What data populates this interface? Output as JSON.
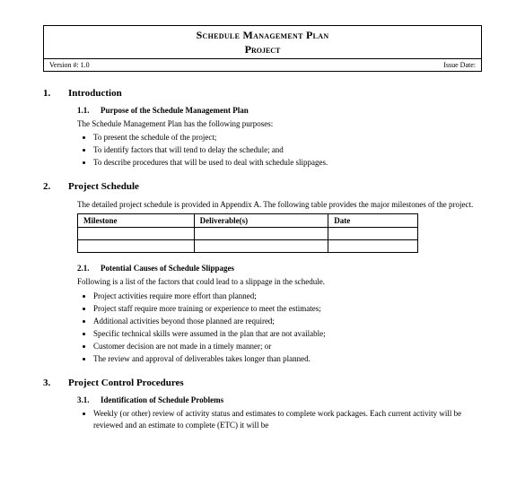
{
  "title": {
    "main": "Schedule Management Plan",
    "sub": "Project",
    "version_label": "Version #:  1.0",
    "issue_label": "Issue Date:"
  },
  "sections": {
    "s1": {
      "num": "1.",
      "title": "Introduction"
    },
    "s1_1": {
      "num": "1.1.",
      "title": "Purpose of the Schedule Management Plan"
    },
    "s1_1_intro": "The Schedule Management Plan has the following purposes:",
    "s1_1_bullets": [
      "To present the schedule of the project;",
      "To identify factors that will tend to delay the schedule; and",
      "To describe procedures that will be used to deal with schedule slippages."
    ],
    "s2": {
      "num": "2.",
      "title": "Project Schedule"
    },
    "s2_intro": "The detailed project schedule is provided in Appendix A.  The following table provides the major milestones of the project.",
    "s2_table": {
      "headers": [
        "Milestone",
        "Deliverable(s)",
        "Date"
      ],
      "col_widths": [
        "130px",
        "150px",
        "100px"
      ]
    },
    "s2_1": {
      "num": "2.1.",
      "title": "Potential Causes of Schedule Slippages"
    },
    "s2_1_intro": "Following is a list of the factors that could lead to a slippage in the schedule.",
    "s2_1_bullets": [
      "Project activities require more effort than planned;",
      "Project staff require more training or experience to meet the estimates;",
      "Additional activities beyond those planned are required;",
      "Specific technical skills were assumed in the plan that are not available;",
      "Customer decision are not made in a timely manner; or",
      "The review and approval of deliverables takes longer than planned."
    ],
    "s3": {
      "num": "3.",
      "title": "Project Control Procedures"
    },
    "s3_1": {
      "num": "3.1.",
      "title": "Identification of Schedule Problems"
    },
    "s3_1_bullets": [
      "Weekly (or other) review of activity status and estimates to complete work packages. Each current activity will be reviewed and an estimate to complete (ETC) it will be"
    ]
  }
}
